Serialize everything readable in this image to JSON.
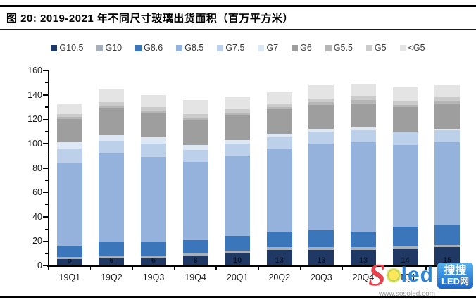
{
  "header": {
    "title": "图 20:  2019-2021 年不同尺寸玻璃出货面积（百万平方米）"
  },
  "chart_data": {
    "type": "bar",
    "stacked": true,
    "title": "2019-2021 年不同尺寸玻璃出货面积（百万平方米）",
    "xlabel": "",
    "ylabel": "",
    "ylim": [
      0,
      160
    ],
    "ytick_step": 20,
    "ytick_minor": 10,
    "grid": false,
    "legend_position": "top",
    "bar_label_series": "G10.5",
    "categories": [
      "19Q1",
      "19Q2",
      "19Q3",
      "19Q4",
      "20Q1",
      "20Q2",
      "20Q3",
      "20Q4",
      "21Q1",
      "21Q2"
    ],
    "series": [
      {
        "name": "G10.5",
        "color": "#1f3864",
        "values": [
          5,
          6,
          6,
          8,
          10,
          13,
          13,
          13,
          14,
          15
        ]
      },
      {
        "name": "G10",
        "color": "#a6b0bd",
        "values": [
          2,
          2,
          2,
          2,
          2,
          2,
          2,
          2,
          2,
          2
        ]
      },
      {
        "name": "G8.6",
        "color": "#3a76b9",
        "values": [
          9,
          11,
          11,
          11,
          12,
          13,
          14,
          12,
          16,
          16
        ]
      },
      {
        "name": "G8.5",
        "color": "#94b2dc",
        "values": [
          68,
          73,
          70,
          64,
          66,
          68,
          71,
          74,
          67,
          68
        ]
      },
      {
        "name": "G7.5",
        "color": "#bdd0ea",
        "values": [
          12,
          10,
          11,
          10,
          10,
          9,
          10,
          10,
          10,
          10
        ]
      },
      {
        "name": "G7",
        "color": "#dde8f4",
        "values": [
          5,
          5,
          5,
          4,
          3,
          3,
          2,
          2,
          1,
          1
        ]
      },
      {
        "name": "G6",
        "color": "#9e9e9e",
        "values": [
          19,
          22,
          20,
          20,
          20,
          20,
          20,
          20,
          20,
          21
        ]
      },
      {
        "name": "G5.5",
        "color": "#b6b6b6",
        "values": [
          2,
          2,
          2,
          2,
          2,
          2,
          2,
          3,
          2,
          2
        ]
      },
      {
        "name": "G5",
        "color": "#cbcbcb",
        "values": [
          2,
          3,
          3,
          3,
          3,
          3,
          3,
          3,
          3,
          3
        ]
      },
      {
        "name": "<G5",
        "color": "#e4e4e4",
        "values": [
          9,
          11,
          10,
          12,
          10,
          9,
          11,
          10,
          11,
          10
        ]
      }
    ],
    "totals": [
      133,
      145,
      140,
      136,
      138,
      142,
      148,
      149,
      146,
      148
    ]
  },
  "watermark": {
    "letter": "S",
    "word": "led",
    "box_line1": "搜搜",
    "box_line2": "LED网",
    "url": "www.sosoled.com"
  }
}
